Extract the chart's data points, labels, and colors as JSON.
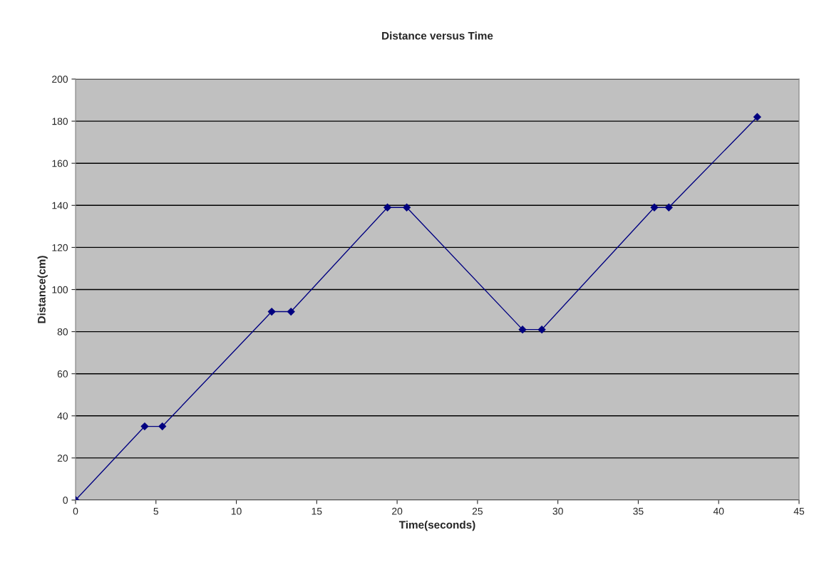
{
  "chart_data": {
    "type": "line",
    "title": "Distance versus Time",
    "xlabel": "Time(seconds)",
    "ylabel": "Distance(cm)",
    "series": [
      {
        "color": "#000080",
        "x": [
          0,
          4.3,
          5.4,
          12.2,
          13.4,
          19.4,
          20.6,
          27.8,
          29.0,
          36.0,
          36.9,
          42.4
        ],
        "values": [
          0,
          35,
          35,
          89.5,
          89.5,
          139,
          139,
          81,
          81,
          139,
          139,
          182
        ]
      }
    ],
    "xlim": [
      0,
      45
    ],
    "xticks": [
      0,
      5,
      10,
      15,
      20,
      25,
      30,
      35,
      40,
      45
    ],
    "ylim": [
      0,
      200
    ],
    "yticks": [
      0,
      20,
      40,
      60,
      80,
      100,
      120,
      140,
      160,
      180,
      200
    ],
    "grid": "y",
    "marker": "diamond",
    "line_style": "solid"
  }
}
